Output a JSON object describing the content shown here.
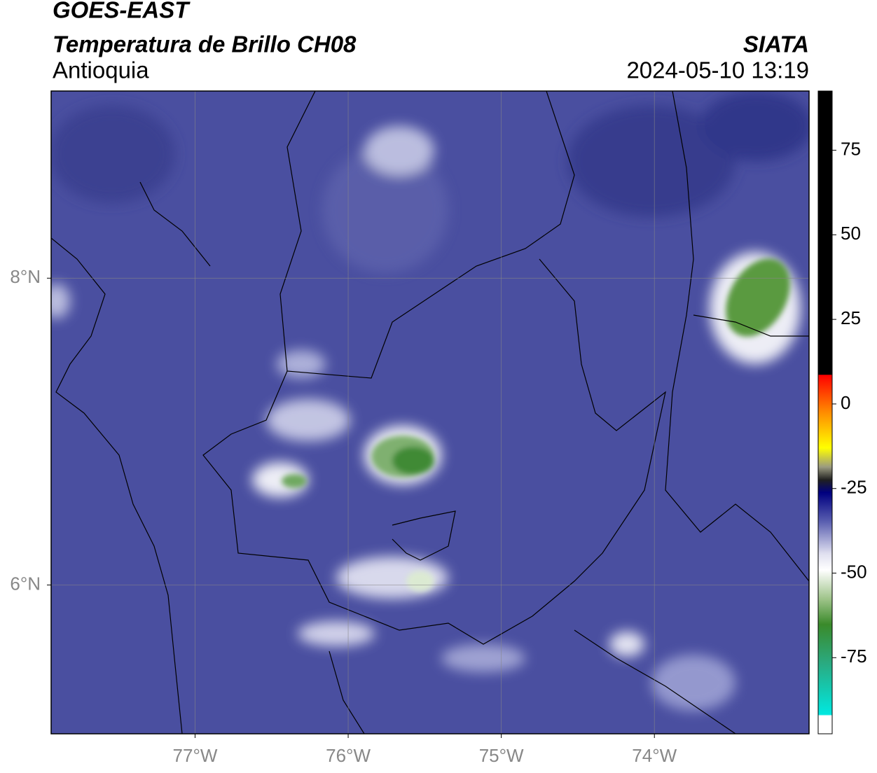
{
  "header": {
    "title": "GOES-EAST",
    "subtitle": "Temperatura de Brillo CH08",
    "region": "Antioquia",
    "source": "SIATA",
    "datetime": "2024-05-10 13:19"
  },
  "map": {
    "xlim": [
      -77.94,
      -72.99
    ],
    "ylim": [
      5.03,
      9.22
    ],
    "xticks": [
      {
        "value": -77,
        "label": "77°W"
      },
      {
        "value": -76,
        "label": "76°W"
      },
      {
        "value": -75,
        "label": "75°W"
      },
      {
        "value": -74,
        "label": "74°W"
      }
    ],
    "yticks": [
      {
        "value": 8,
        "label": "8°N"
      },
      {
        "value": 6,
        "label": "6°N"
      }
    ],
    "grid": true
  },
  "colorbar": {
    "lim": [
      -97.5,
      92.5
    ],
    "ticks": [
      75,
      50,
      25,
      0,
      -25,
      -50,
      -75
    ]
  }
}
